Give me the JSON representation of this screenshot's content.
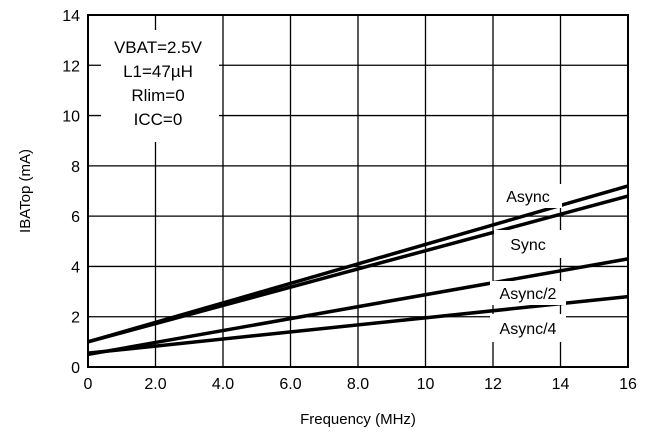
{
  "chart_data": {
    "type": "line",
    "xlabel": "Frequency (MHz)",
    "ylabel": "IBATop (mA)",
    "xlim": [
      0,
      16
    ],
    "ylim": [
      0,
      14
    ],
    "x_ticks": [
      "0",
      "2.0",
      "4.0",
      "6.0",
      "8.0",
      "10",
      "12",
      "14",
      "16"
    ],
    "y_ticks": [
      "0",
      "2",
      "4",
      "6",
      "8",
      "10",
      "12",
      "14"
    ],
    "grid": true,
    "conditions": [
      "VBAT=2.5V",
      "L1=47µH",
      "Rlim=0",
      "ICC=0"
    ],
    "series": [
      {
        "name": "Async",
        "x": [
          0,
          16
        ],
        "y": [
          1.0,
          7.2
        ]
      },
      {
        "name": "Sync",
        "x": [
          0,
          16
        ],
        "y": [
          1.0,
          6.8
        ]
      },
      {
        "name": "Async/2",
        "x": [
          0,
          16
        ],
        "y": [
          0.5,
          4.3
        ]
      },
      {
        "name": "Async/4",
        "x": [
          0,
          16
        ],
        "y": [
          0.55,
          2.8
        ]
      }
    ]
  }
}
